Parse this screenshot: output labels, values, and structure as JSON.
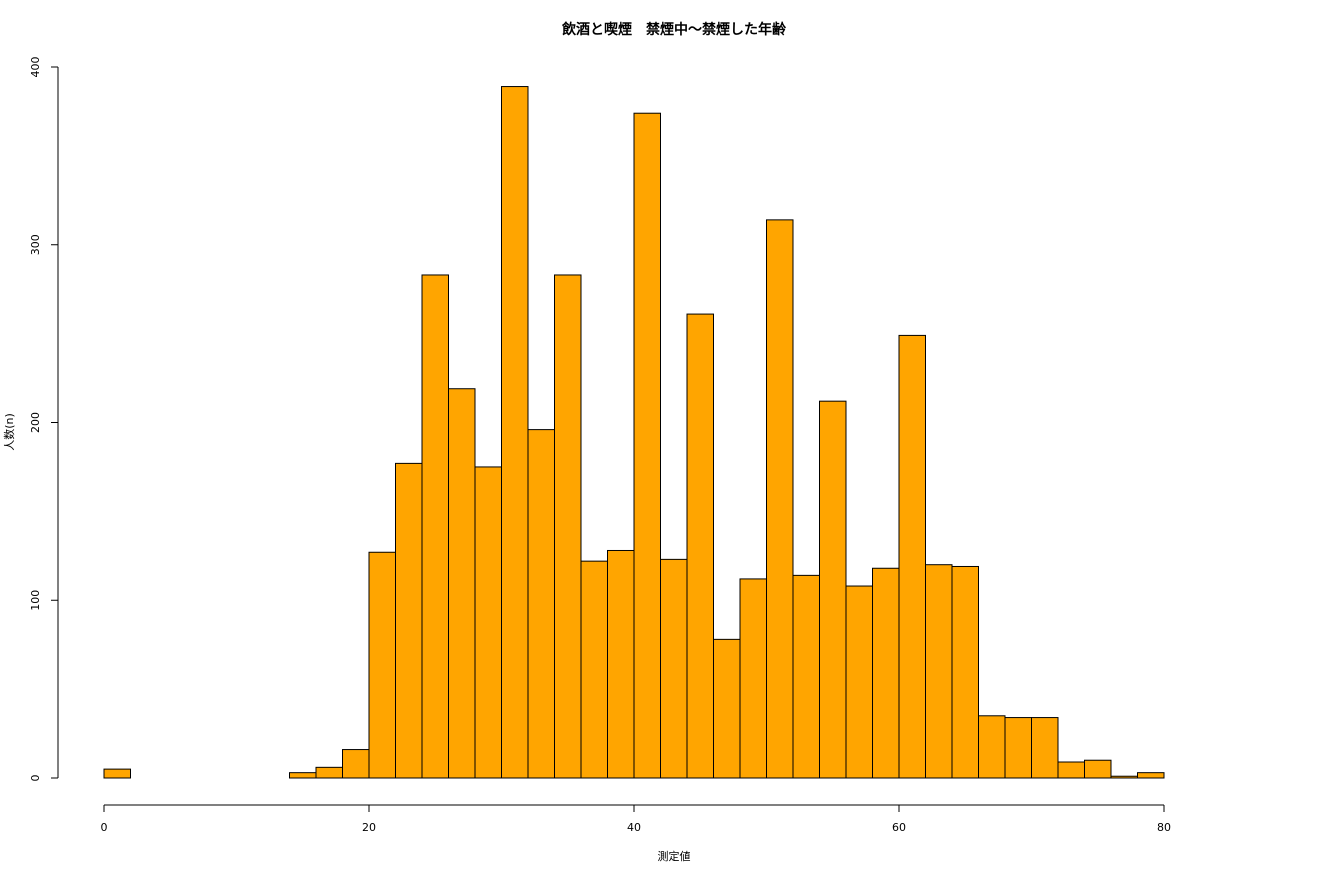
{
  "chart_data": {
    "type": "histogram",
    "title": "飲酒と喫煙　禁煙中～禁煙した年齢",
    "x_label": "測定値",
    "y_label": "人数(n)",
    "bins": [
      0,
      2,
      4,
      6,
      8,
      10,
      12,
      14,
      16,
      18,
      20,
      22,
      24,
      26,
      28,
      30,
      32,
      34,
      36,
      38,
      40,
      42,
      44,
      46,
      48,
      50,
      52,
      54,
      56,
      58,
      60,
      62,
      64,
      66,
      68,
      70,
      72,
      74,
      76,
      78,
      80
    ],
    "values": [
      5,
      0,
      0,
      0,
      0,
      0,
      0,
      3,
      6,
      16,
      127,
      177,
      283,
      219,
      175,
      389,
      196,
      283,
      122,
      128,
      374,
      123,
      261,
      78,
      112,
      314,
      114,
      212,
      108,
      118,
      249,
      120,
      119,
      35,
      34,
      34,
      9,
      10,
      1,
      3
    ],
    "color": "#ffa500",
    "xlim": [
      0,
      80
    ],
    "xticks": [
      0,
      20,
      40,
      60,
      80
    ],
    "ylim": [
      0,
      400
    ],
    "yticks": [
      0,
      100,
      200,
      300,
      400
    ]
  }
}
